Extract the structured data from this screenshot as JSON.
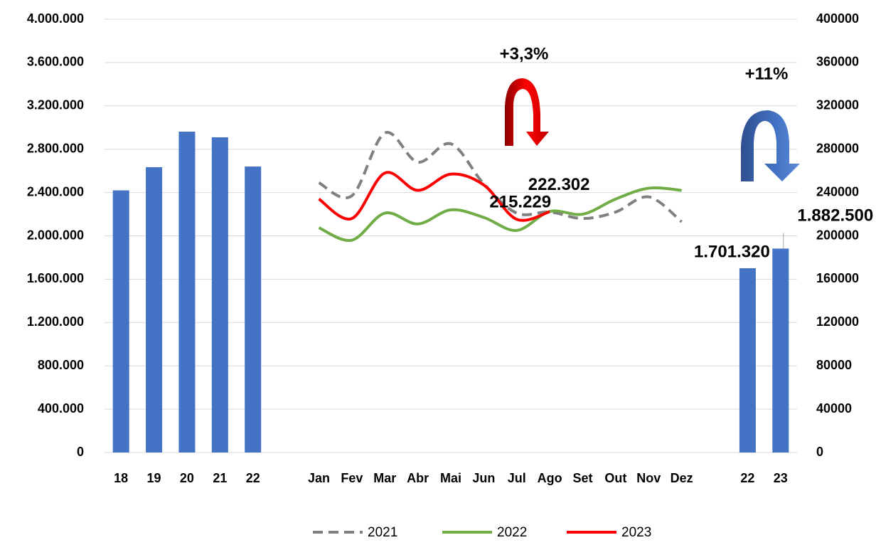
{
  "chart_data": {
    "type": "bar-line",
    "categories": [
      "18",
      "19",
      "20",
      "21",
      "22",
      null,
      "Jan",
      "Fev",
      "Mar",
      "Abr",
      "Mai",
      "Jun",
      "Jul",
      "Ago",
      "Set",
      "Out",
      "Nov",
      "Dez",
      null,
      "22",
      "23"
    ],
    "ylim": [
      0,
      4000000
    ],
    "yticks": [
      0,
      {
        "value": 400000,
        "label": "400.000"
      },
      {
        "value": 800000,
        "label": "800.000"
      },
      {
        "value": 1200000,
        "label": "1.200.000"
      },
      {
        "value": 1600000,
        "label": "1.600.000"
      },
      {
        "value": 2000000,
        "label": "2.000.000"
      },
      {
        "value": 2400000,
        "label": "2.400.000"
      },
      {
        "value": 2800000,
        "label": "2.800.000"
      },
      {
        "value": 3200000,
        "label": "3.200.000"
      },
      {
        "value": 3600000,
        "label": "3.600.000"
      },
      {
        "value": 4000000,
        "label": "4.000.000"
      }
    ],
    "y2lim": [
      0,
      400000
    ],
    "y2ticks": [
      0,
      40000,
      80000,
      120000,
      160000,
      200000,
      240000,
      280000,
      320000,
      360000,
      400000
    ],
    "grid": true,
    "bars": {
      "color": "#4472c4",
      "values": [
        2420000,
        2634000,
        2962000,
        2910000,
        2640000,
        null,
        null,
        null,
        null,
        null,
        null,
        null,
        null,
        null,
        null,
        null,
        null,
        null,
        null,
        1701320,
        1882500
      ],
      "value_labels": [
        null,
        null,
        null,
        null,
        null,
        null,
        null,
        null,
        null,
        null,
        null,
        null,
        null,
        null,
        null,
        null,
        null,
        null,
        null,
        "1.701.320",
        "1.882.500"
      ]
    },
    "series": [
      {
        "name": "2021",
        "color": "#808080",
        "dashed": true,
        "axis": "y2",
        "values": [
          null,
          null,
          null,
          null,
          null,
          null,
          249000,
          237000,
          295000,
          268000,
          285000,
          248000,
          221000,
          222000,
          216000,
          222000,
          236000,
          213000,
          null,
          null,
          null
        ]
      },
      {
        "name": "2022",
        "color": "#70ad47",
        "axis": "y2",
        "values": [
          null,
          null,
          null,
          null,
          null,
          null,
          207500,
          196000,
          221000,
          211000,
          224000,
          217000,
          205000,
          222500,
          220000,
          234000,
          244000,
          242000,
          null,
          null,
          null
        ]
      },
      {
        "name": "2023",
        "color": "#ff0000",
        "axis": "y2",
        "values": [
          null,
          null,
          null,
          null,
          null,
          null,
          234000,
          216000,
          258000,
          242000,
          257000,
          247000,
          215229,
          222302,
          null,
          null,
          null,
          null,
          null,
          null,
          null
        ],
        "value_labels": [
          null,
          null,
          null,
          null,
          null,
          null,
          null,
          null,
          null,
          null,
          null,
          null,
          "215.229",
          "222.302",
          null,
          null,
          null,
          null,
          null,
          null,
          null
        ]
      }
    ],
    "annotations": [
      "+3,3%",
      "+11%"
    ]
  }
}
